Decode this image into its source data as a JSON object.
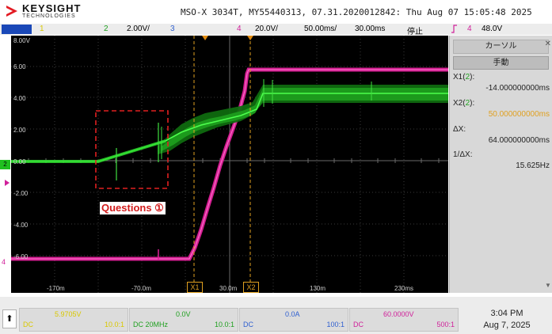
{
  "header": {
    "brand": "KEYSIGHT",
    "brand_sub": "TECHNOLOGIES",
    "title": "MSO-X 3034T, MY55440313, 07.31.2020012842: Thu Aug 07 15:05:48 2025"
  },
  "channel_bar": {
    "ch1_num": "1",
    "ch2_num": "2",
    "ch2_scale": "2.00V/",
    "ch3_num": "3",
    "ch4_num": "4",
    "ch4_scale": "20.0V/",
    "timebase": "50.00ms/",
    "delay": "30.00ms",
    "run_state": "停止",
    "trig_icon": "trigger-edge-icon",
    "trig_src": "4",
    "trig_level": "48.0V"
  },
  "plot": {
    "y_labels": [
      "8.00V",
      "6.00",
      "4.00",
      "2.00",
      "0.00",
      "-2.00",
      "-4.00",
      "-6.00"
    ],
    "x_labels": [
      "-170m",
      "-70.0m",
      "30.0m",
      "130m",
      "230ms"
    ],
    "cursor_x1": "X1",
    "cursor_x2": "X2",
    "ch2_ground": "2",
    "ch4_ground": "4"
  },
  "annotation": {
    "label": "Questions ①"
  },
  "cursor_panel": {
    "title": "カーソル",
    "close": "✕",
    "mode": "手動",
    "x1_label": "X1(",
    "x1_ch": "2",
    "x1_value": "-14.000000000ms",
    "x2_label": "X2(",
    "x2_ch": "2",
    "x2_value": "50.000000000ms",
    "dx_label": "ΔX:",
    "dx_value": "64.000000000ms",
    "inv_dx_label": "1/ΔX:",
    "inv_dx_value": "15.625Hz"
  },
  "bottom_bar": {
    "up_button": "⬆",
    "ch1": {
      "value": "5.9705V",
      "coupling": "DC",
      "probe": "10.0:1"
    },
    "ch2": {
      "value": "0.0V",
      "coupling": "DC 20MHz",
      "probe": "10.0:1"
    },
    "ch3": {
      "value": "0.0A",
      "coupling": "DC",
      "probe": "100:1"
    },
    "ch4": {
      "value": "60.0000V",
      "coupling": "DC",
      "probe": "500:1"
    },
    "time": "3:04 PM",
    "date": "Aug 7, 2025"
  },
  "colors": {
    "ch1": "#d9c800",
    "ch2": "#20e020",
    "ch3": "#3060d0",
    "ch4": "#e0209a",
    "plot_bg": "#000000",
    "annotation": "#e02020",
    "cursor_line": "#e0a020"
  }
}
